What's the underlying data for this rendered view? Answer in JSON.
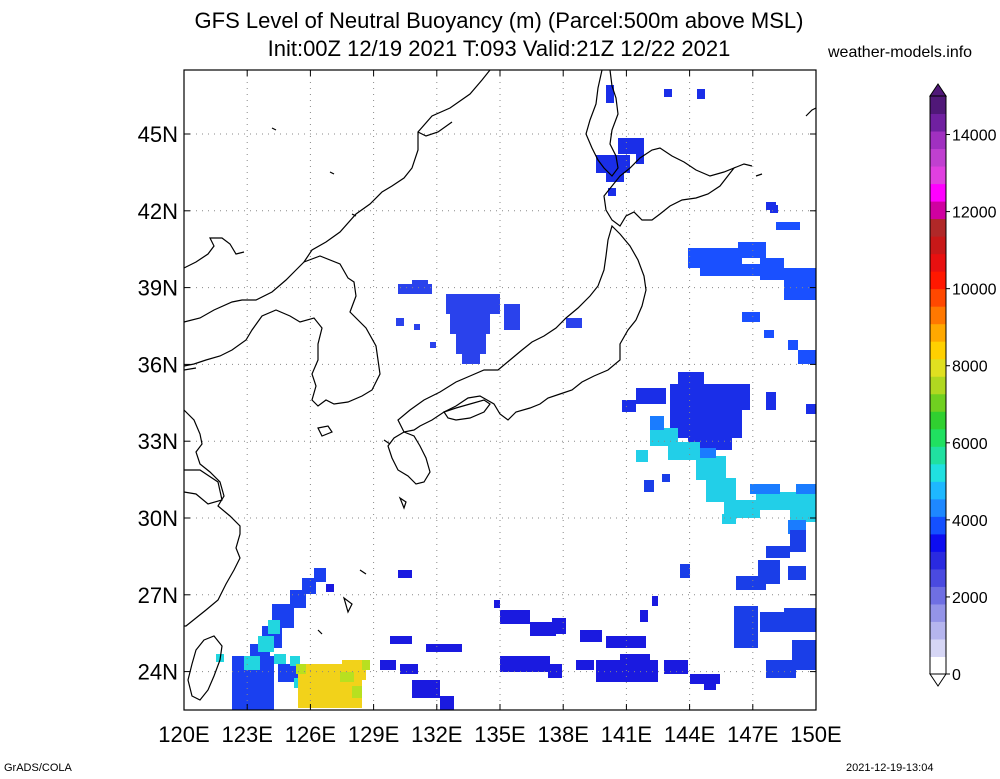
{
  "title": {
    "line1": "GFS Level of Neutral Buoyancy (m) (Parcel:500m above MSL)",
    "line2": "Init:00Z 12/19 2021 T:093 Valid:21Z 12/22 2021"
  },
  "site": "weather-models.info",
  "footer": {
    "left": "GrADS/COLA",
    "right": "2021-12-19-13:04"
  },
  "map": {
    "lon_range": [
      120,
      150
    ],
    "lat_range": [
      22.5,
      47.5
    ],
    "lon_ticks": [
      "120E",
      "123E",
      "126E",
      "129E",
      "132E",
      "135E",
      "138E",
      "141E",
      "144E",
      "147E",
      "150E"
    ],
    "lat_ticks": [
      "24N",
      "27N",
      "30N",
      "33N",
      "36N",
      "39N",
      "42N",
      "45N"
    ],
    "grid": "dotted"
  },
  "colorbar": {
    "labels": [
      "0",
      "2000",
      "4000",
      "6000",
      "8000",
      "10000",
      "12000",
      "14000"
    ],
    "colors": [
      "#ffffff",
      "#d6d6f5",
      "#b5b5ee",
      "#9494e8",
      "#6f6fe3",
      "#4a4ae0",
      "#2a2ae0",
      "#0d0df0",
      "#1450ff",
      "#1e88ff",
      "#1eb8ff",
      "#20e0e0",
      "#20e0a0",
      "#20e060",
      "#30d030",
      "#70d020",
      "#b0d820",
      "#e0e020",
      "#ffd000",
      "#ffa800",
      "#ff7800",
      "#ff4800",
      "#ff1800",
      "#e81010",
      "#c81818",
      "#b02828",
      "#d000a0",
      "#ff00ff",
      "#e040e0",
      "#c040d0",
      "#a030c0",
      "#7020a0",
      "#501878"
    ]
  },
  "field": {
    "description_free": true,
    "patches": [
      {
        "name": "sakhalin-blue",
        "color": "#1a2ee8"
      },
      {
        "name": "sea-of-japan-blue",
        "color": "#2a3ef0"
      },
      {
        "name": "east-ocean-blue",
        "color": "#1a3ae8"
      },
      {
        "name": "east-ocean-cyan",
        "color": "#2ad6e8"
      },
      {
        "name": "south-blue",
        "color": "#1a1ae0"
      },
      {
        "name": "okinawa-yellow",
        "color": "#f2d21a"
      }
    ]
  }
}
